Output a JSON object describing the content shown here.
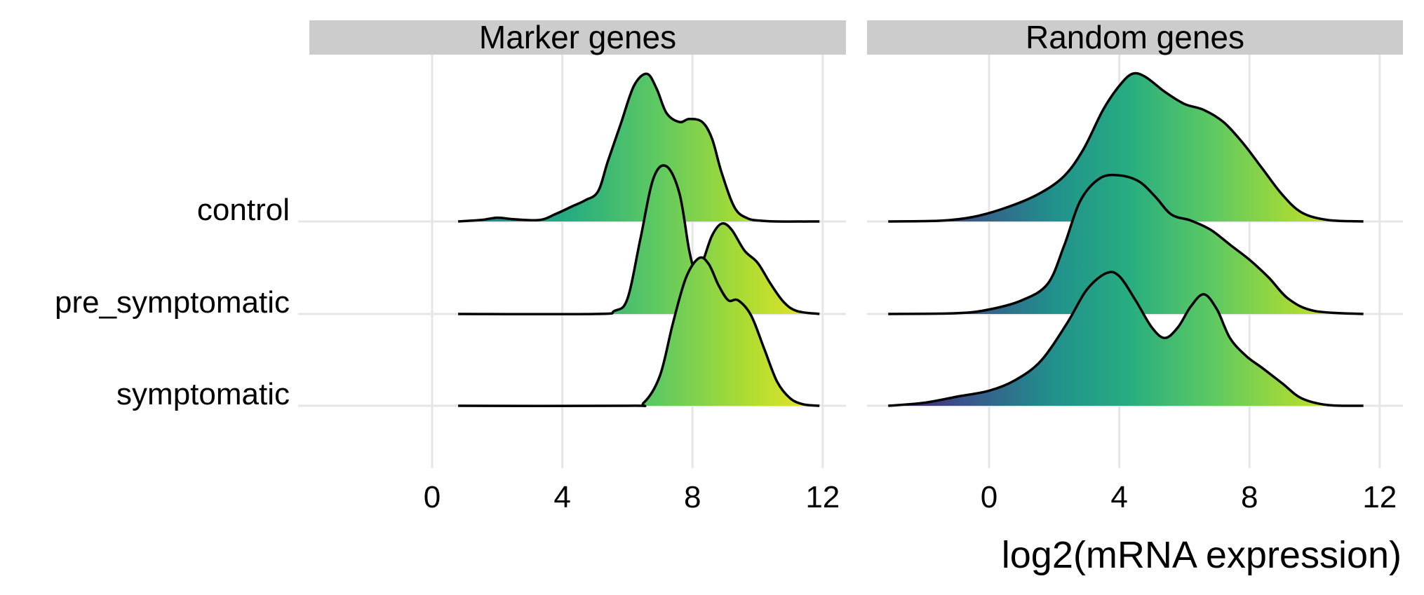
{
  "chart_data": {
    "type": "ridgeline",
    "xlabel": "log2(mRNA expression)",
    "ylabel": "",
    "categories": [
      "control",
      "pre_symptomatic",
      "symptomatic"
    ],
    "xlim": [
      -3.8,
      12.4
    ],
    "xticks": [
      0,
      4,
      8,
      12
    ],
    "grid": true,
    "legend": "none",
    "fill": "viridis gradient along x (low = purple, high = yellow)",
    "colors": {
      "strip_bg": "#cccccc",
      "grid": "#e6e6e6",
      "line": "#000000",
      "viridis": [
        "#440154",
        "#3b528b",
        "#21918c",
        "#27ad81",
        "#5ec962",
        "#a8db34",
        "#fde725"
      ]
    },
    "panels": [
      {
        "title": "Marker genes",
        "range": [
          0.8,
          11.9
        ],
        "series": [
          {
            "name": "control",
            "x": [
              0.8,
              1.5,
              2,
              2.5,
              3.3,
              3.8,
              4.3,
              4.7,
              5.1,
              5.4,
              5.8,
              6.2,
              6.6,
              6.9,
              7.2,
              7.6,
              7.9,
              8.3,
              8.6,
              8.9,
              9.3,
              9.7,
              10.1,
              10.6,
              11.9
            ],
            "y": [
              0,
              0.01,
              0.025,
              0.015,
              0.01,
              0.05,
              0.1,
              0.14,
              0.2,
              0.4,
              0.65,
              0.9,
              0.98,
              0.88,
              0.72,
              0.66,
              0.68,
              0.66,
              0.55,
              0.32,
              0.09,
              0.02,
              0.005,
              0,
              0
            ]
          },
          {
            "name": "pre_symptomatic",
            "x": [
              0.8,
              5.0,
              5.6,
              6.0,
              6.4,
              6.8,
              7.2,
              7.6,
              7.9,
              8.1,
              8.3,
              8.6,
              8.9,
              9.2,
              9.6,
              10,
              10.4,
              10.8,
              11.2,
              11.9
            ],
            "y": [
              0,
              0,
              0.02,
              0.1,
              0.5,
              0.9,
              0.98,
              0.8,
              0.42,
              0.28,
              0.34,
              0.52,
              0.6,
              0.56,
              0.42,
              0.34,
              0.2,
              0.08,
              0.02,
              0
            ]
          },
          {
            "name": "symptomatic",
            "x": [
              0.8,
              6.0,
              6.5,
              7.0,
              7.4,
              7.8,
              8.2,
              8.5,
              8.8,
              9.1,
              9.4,
              9.8,
              10.2,
              10.6,
              11.0,
              11.4,
              11.9
            ],
            "y": [
              0,
              0,
              0.02,
              0.2,
              0.55,
              0.85,
              0.98,
              0.94,
              0.8,
              0.7,
              0.7,
              0.6,
              0.38,
              0.16,
              0.05,
              0.01,
              0
            ]
          }
        ]
      },
      {
        "title": "Random genes",
        "range": [
          -3.1,
          11.5
        ],
        "series": [
          {
            "name": "control",
            "x": [
              -3.1,
              -1.5,
              -0.5,
              0.5,
              1.5,
              2.3,
              2.9,
              3.5,
              4.0,
              4.4,
              4.8,
              5.4,
              6.0,
              6.6,
              7.2,
              7.8,
              8.4,
              9.0,
              9.6,
              10.4,
              11.5
            ],
            "y": [
              0,
              0.005,
              0.03,
              0.09,
              0.18,
              0.3,
              0.48,
              0.74,
              0.9,
              0.98,
              0.96,
              0.86,
              0.78,
              0.74,
              0.66,
              0.52,
              0.35,
              0.18,
              0.06,
              0.01,
              0
            ]
          },
          {
            "name": "pre_symptomatic",
            "x": [
              -3.1,
              -1,
              0,
              1,
              1.8,
              2.3,
              2.8,
              3.4,
              4.0,
              4.6,
              5.1,
              5.6,
              6.2,
              6.8,
              7.4,
              8.0,
              8.6,
              9.2,
              10,
              11.5
            ],
            "y": [
              0,
              0.005,
              0.03,
              0.09,
              0.2,
              0.45,
              0.75,
              0.9,
              0.92,
              0.88,
              0.78,
              0.66,
              0.62,
              0.56,
              0.46,
              0.36,
              0.24,
              0.1,
              0.02,
              0
            ]
          },
          {
            "name": "symptomatic",
            "x": [
              -3.1,
              -2,
              -1,
              0,
              0.8,
              1.6,
              2.4,
              3.0,
              3.6,
              4.0,
              4.5,
              5.0,
              5.4,
              5.8,
              6.2,
              6.6,
              7.0,
              7.4,
              7.9,
              8.4,
              9.0,
              9.6,
              10.4,
              11.5
            ],
            "y": [
              0,
              0.02,
              0.06,
              0.1,
              0.17,
              0.3,
              0.55,
              0.77,
              0.88,
              0.86,
              0.7,
              0.52,
              0.45,
              0.52,
              0.66,
              0.74,
              0.64,
              0.45,
              0.33,
              0.25,
              0.15,
              0.05,
              0.005,
              0
            ]
          }
        ]
      }
    ]
  }
}
